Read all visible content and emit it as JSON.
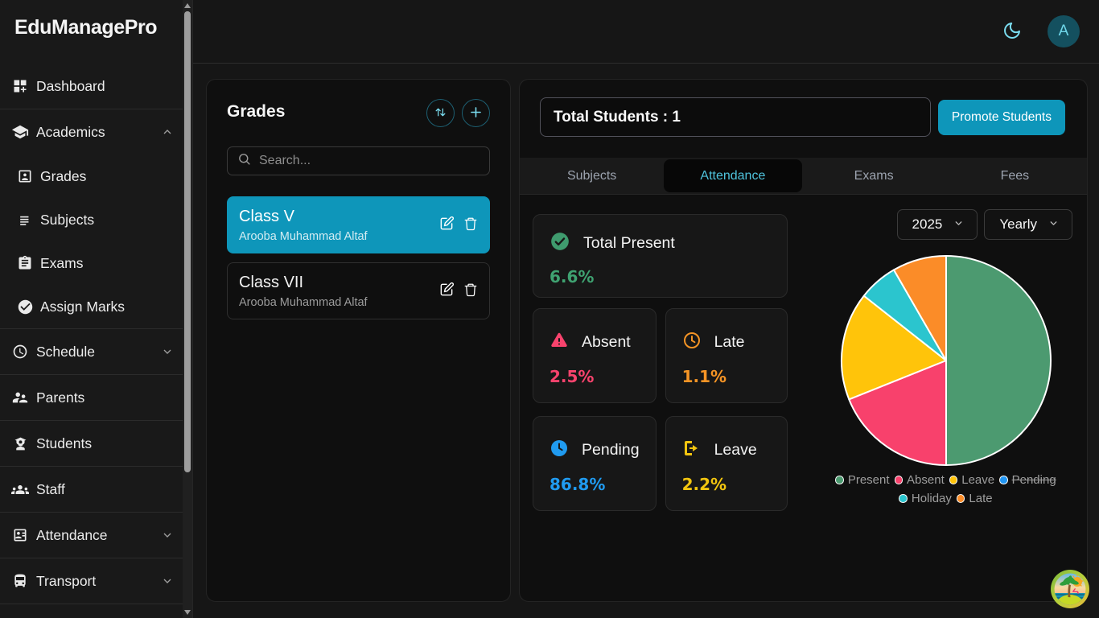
{
  "app": {
    "title": "EduManagePro"
  },
  "topbar": {
    "theme_icon": "moon",
    "avatar_letter": "A"
  },
  "sidebar": {
    "items": [
      {
        "label": "Dashboard"
      },
      {
        "label": "Academics",
        "expanded": true
      },
      {
        "label": "Grades"
      },
      {
        "label": "Subjects"
      },
      {
        "label": "Exams"
      },
      {
        "label": "Assign Marks"
      },
      {
        "label": "Schedule"
      },
      {
        "label": "Parents"
      },
      {
        "label": "Students"
      },
      {
        "label": "Staff"
      },
      {
        "label": "Attendance"
      },
      {
        "label": "Transport"
      }
    ]
  },
  "grades_panel": {
    "title": "Grades",
    "search_placeholder": "Search...",
    "classes": [
      {
        "name": "Class V",
        "teacher": "Arooba Muhammad Altaf",
        "selected": true
      },
      {
        "name": "Class VII",
        "teacher": "Arooba Muhammad Altaf",
        "selected": false
      }
    ]
  },
  "detail_panel": {
    "total_students_label": "Total Students : 1",
    "promote_button": "Promote Students",
    "tabs": [
      {
        "label": "Subjects",
        "active": false
      },
      {
        "label": "Attendance",
        "active": true
      },
      {
        "label": "Exams",
        "active": false
      },
      {
        "label": "Fees",
        "active": false
      }
    ],
    "stats": {
      "present": {
        "label": "Total Present",
        "value": "6.6%"
      },
      "absent": {
        "label": "Absent",
        "value": "2.5%"
      },
      "late": {
        "label": "Late",
        "value": "1.1%"
      },
      "pending": {
        "label": "Pending",
        "value": "86.8%"
      },
      "leave": {
        "label": "Leave",
        "value": "2.2%"
      }
    },
    "filters": {
      "year": "2025",
      "period": "Yearly"
    }
  },
  "chart_data": {
    "type": "pie",
    "title": "Attendance distribution",
    "legend_position": "bottom",
    "start_angle_deg": 0,
    "direction": "clockwise",
    "series": [
      {
        "label": "Present",
        "value": 6.6,
        "color": "#4C9A70",
        "hidden": false
      },
      {
        "label": "Absent",
        "value": 2.5,
        "color": "#F8416C",
        "hidden": false
      },
      {
        "label": "Leave",
        "value": 2.2,
        "color": "#FFC40A",
        "hidden": false
      },
      {
        "label": "Pending",
        "value": 86.8,
        "color": "#2196F3",
        "hidden": true
      },
      {
        "label": "Holiday",
        "value": 0.8,
        "color": "#2BC5CE",
        "hidden": false
      },
      {
        "label": "Late",
        "value": 1.1,
        "color": "#FB8C28",
        "hidden": false
      }
    ]
  },
  "colors": {
    "accent_teal": "#0e96ba",
    "green": "#3fa271",
    "pink": "#f8436d",
    "orange": "#f59425",
    "blue": "#209bf0",
    "yellow": "#f2c50f"
  }
}
